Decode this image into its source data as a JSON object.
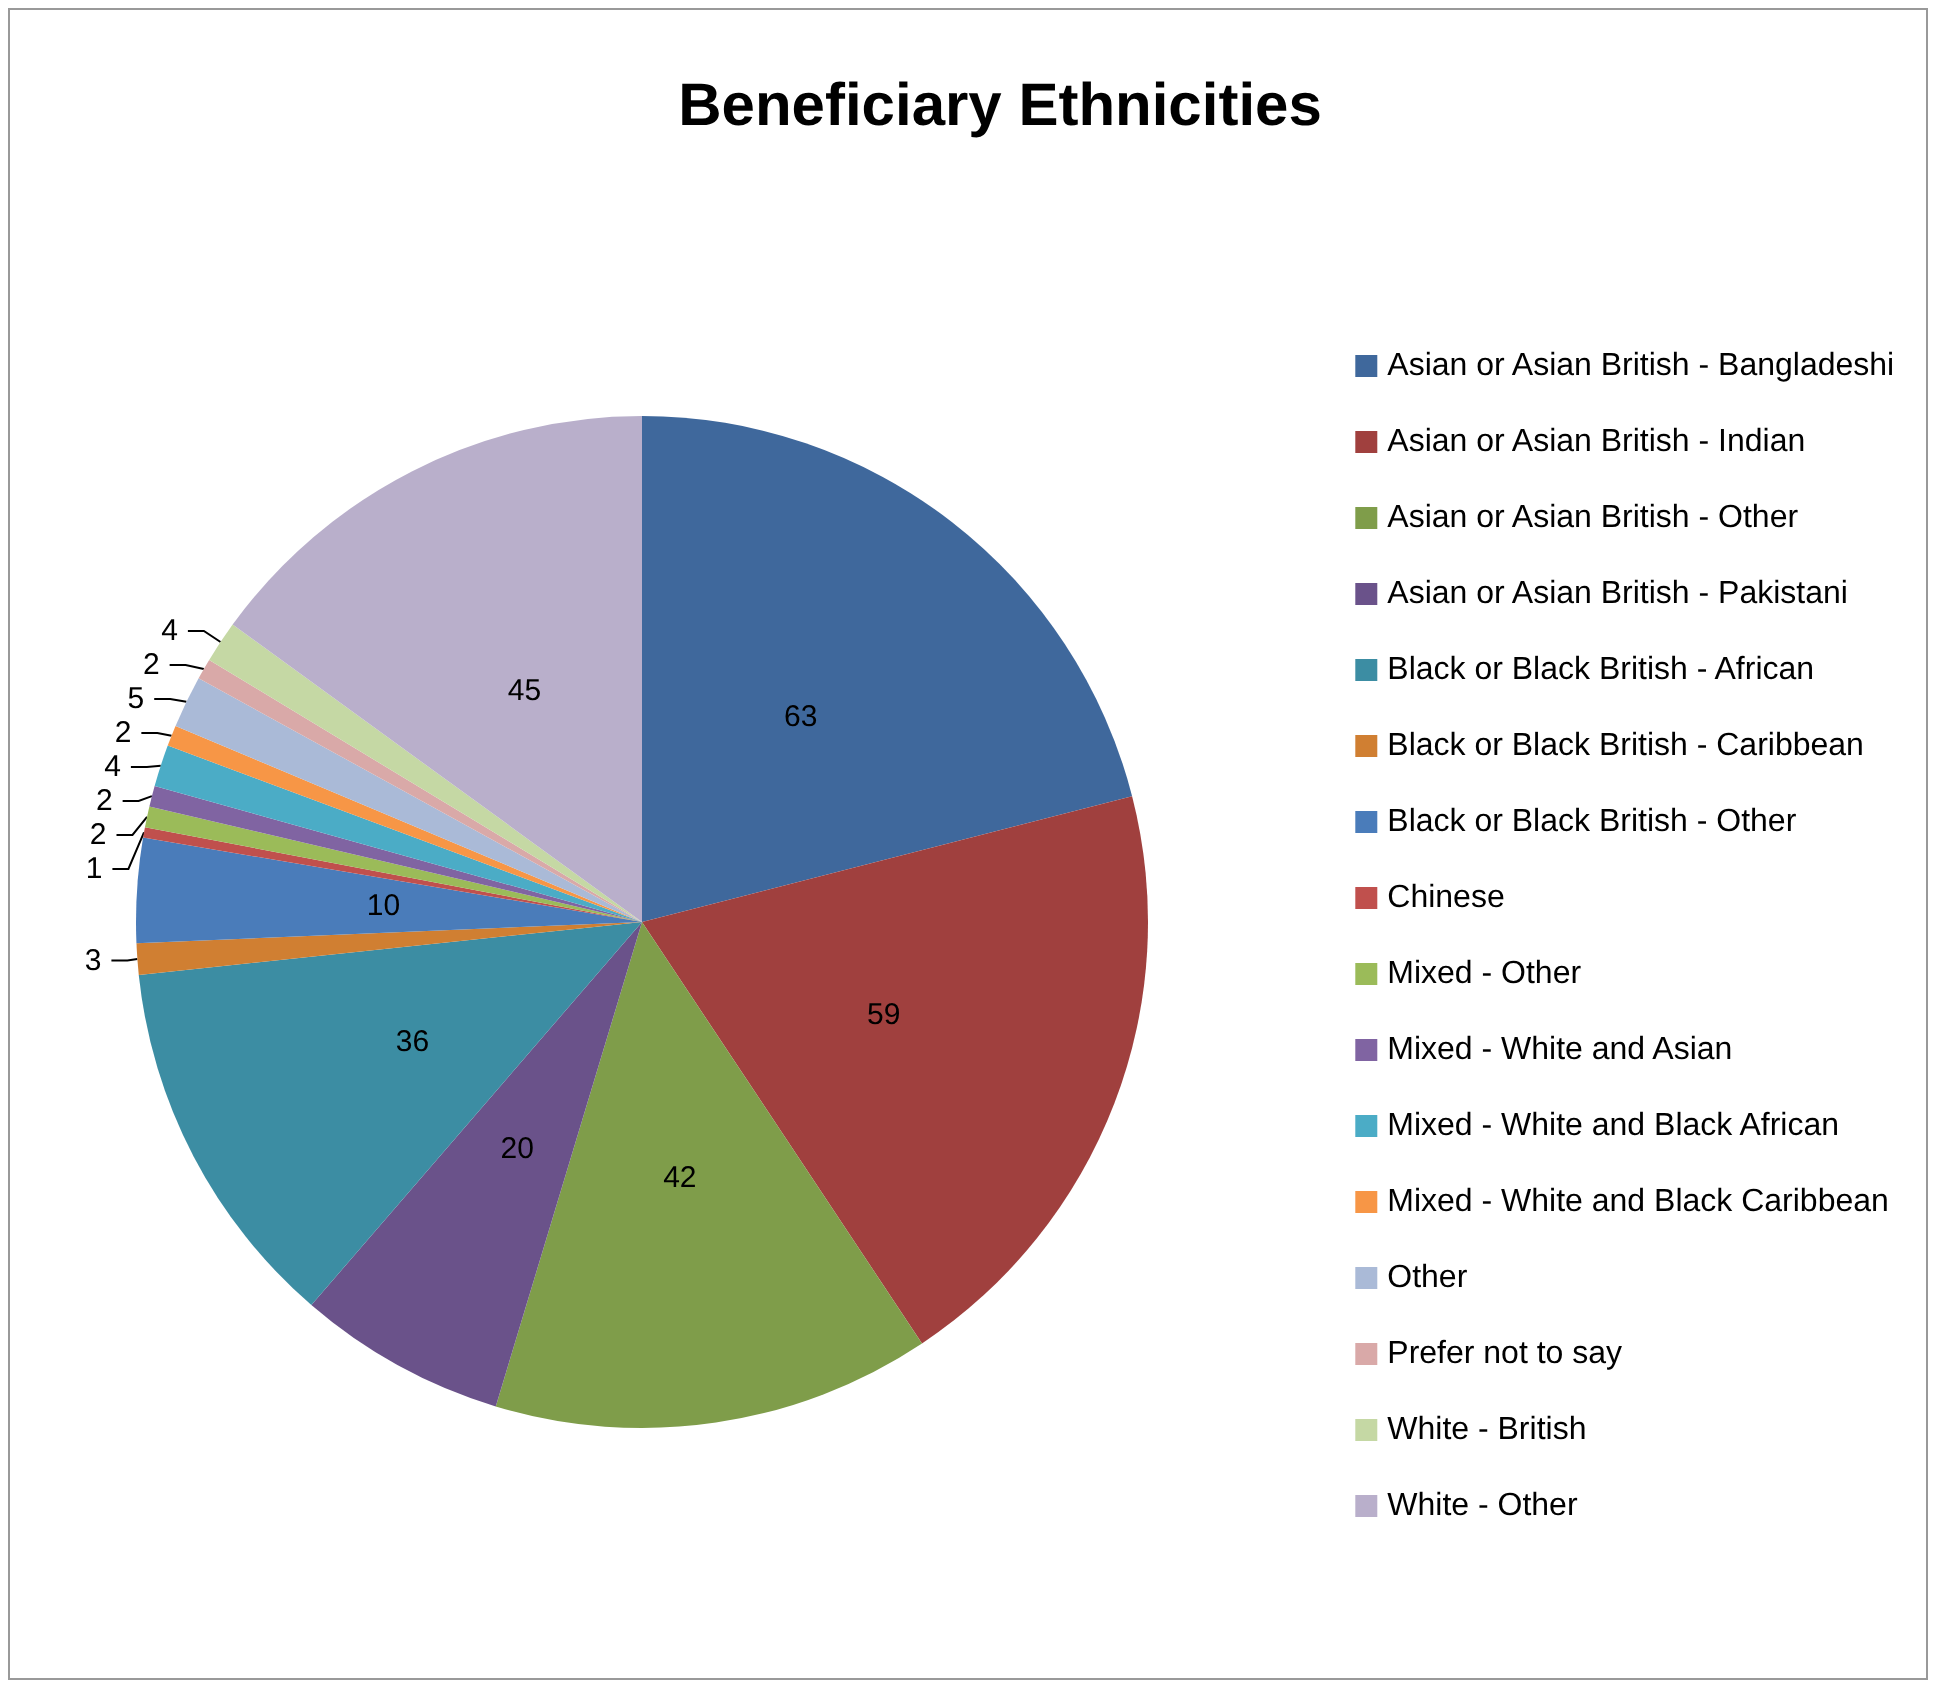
{
  "chart_data": {
    "type": "pie",
    "title": "Beneficiary Ethnicities",
    "categories": [
      "Asian or Asian British - Bangladeshi",
      "Asian or Asian British - Indian",
      "Asian or Asian British - Other",
      "Asian or Asian British - Pakistani",
      "Black or Black British - African",
      "Black or Black British - Caribbean",
      "Black or Black British - Other",
      "Chinese",
      "Mixed - Other",
      "Mixed - White and Asian",
      "Mixed - White and Black African",
      "Mixed - White and Black Caribbean",
      "Other",
      "Prefer not to say",
      "White - British",
      "White - Other"
    ],
    "values": [
      63,
      59,
      42,
      20,
      36,
      3,
      10,
      1,
      2,
      2,
      4,
      2,
      5,
      2,
      4,
      45
    ],
    "colors": [
      "#3f689c",
      "#a0403e",
      "#7f9d4a",
      "#6a528a",
      "#3c8da3",
      "#d07f32",
      "#4a7cba",
      "#c0504d",
      "#9bbb59",
      "#8064a2",
      "#4bacc6",
      "#f79646",
      "#aabad7",
      "#d9a9a8",
      "#c5d8a4",
      "#b9afcb"
    ],
    "data_labels": true,
    "legend": "right"
  }
}
